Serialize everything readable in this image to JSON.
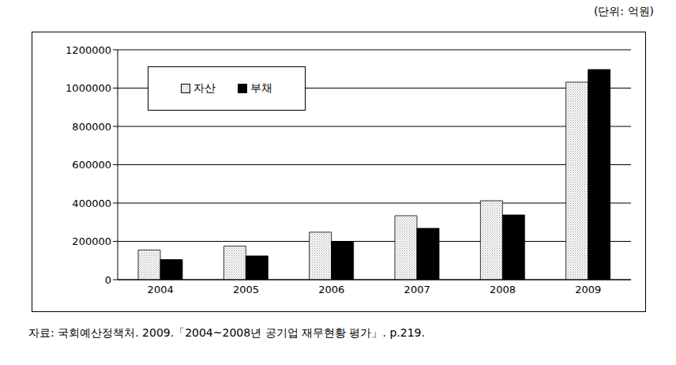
{
  "chart_data": {
    "type": "bar",
    "subtitle": "(단위: 억원)",
    "annotations": [
      "자료: 국회예산정책처. 2009.「2004~2008년 공기업 재무현황 평가」. p.219."
    ],
    "categories": [
      "2004",
      "2005",
      "2006",
      "2007",
      "2008",
      "2009"
    ],
    "series": [
      {
        "name": "자산",
        "color": "#9a9a9a",
        "values": [
          155000,
          175000,
          248000,
          334000,
          412000,
          1031000
        ]
      },
      {
        "name": "부채",
        "color": "#000000",
        "values": [
          105000,
          124000,
          198000,
          268000,
          338000,
          1097000
        ]
      }
    ],
    "ylim": [
      0,
      1200000
    ],
    "yticks": [
      0,
      200000,
      400000,
      600000,
      800000,
      1000000,
      1200000
    ],
    "grid": true,
    "legend": "upper left"
  }
}
